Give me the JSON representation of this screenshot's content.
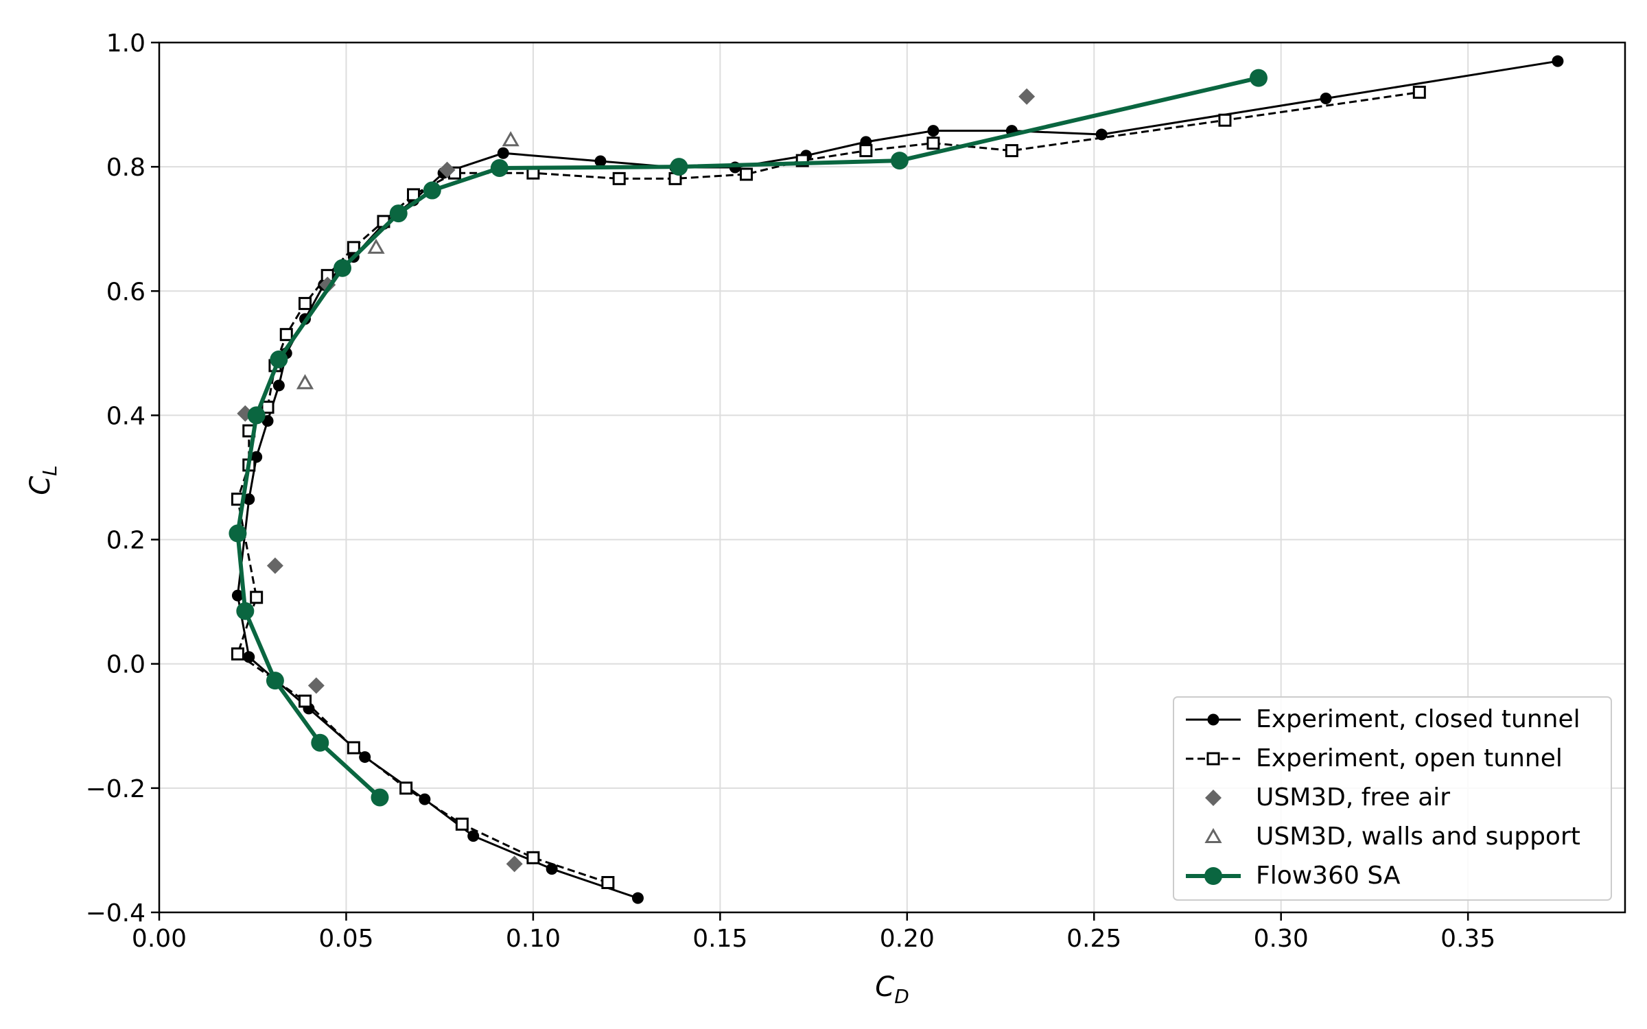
{
  "chart_data": {
    "type": "scatter",
    "title": "",
    "xlabel": {
      "main": "C",
      "sub": "D"
    },
    "ylabel": {
      "main": "C",
      "sub": "L"
    },
    "xlim": [
      0.0,
      0.392
    ],
    "ylim": [
      -0.4,
      1.0
    ],
    "xticks": [
      0.0,
      0.05,
      0.1,
      0.15,
      0.2,
      0.25,
      0.3,
      0.35
    ],
    "xtick_labels": [
      "0.00",
      "0.05",
      "0.10",
      "0.15",
      "0.20",
      "0.25",
      "0.30",
      "0.35"
    ],
    "yticks": [
      -0.4,
      -0.2,
      0.0,
      0.2,
      0.4,
      0.6,
      0.8,
      1.0
    ],
    "ytick_labels": [
      "−0.4",
      "−0.2",
      "0.0",
      "0.2",
      "0.4",
      "0.6",
      "0.8",
      "1.0"
    ],
    "grid": true,
    "legend_position": "bottom-right",
    "series": [
      {
        "name": "Experiment, closed tunnel",
        "style": "line-dot",
        "color": "#000000",
        "points": [
          [
            0.128,
            -0.377
          ],
          [
            0.105,
            -0.33
          ],
          [
            0.084,
            -0.277
          ],
          [
            0.071,
            -0.218
          ],
          [
            0.055,
            -0.15
          ],
          [
            0.04,
            -0.072
          ],
          [
            0.024,
            0.011
          ],
          [
            0.021,
            0.11
          ],
          [
            0.024,
            0.265
          ],
          [
            0.026,
            0.333
          ],
          [
            0.029,
            0.391
          ],
          [
            0.032,
            0.448
          ],
          [
            0.034,
            0.5
          ],
          [
            0.039,
            0.555
          ],
          [
            0.044,
            0.61
          ],
          [
            0.052,
            0.655
          ],
          [
            0.06,
            0.708
          ],
          [
            0.068,
            0.746
          ],
          [
            0.076,
            0.79
          ],
          [
            0.092,
            0.822
          ],
          [
            0.118,
            0.809
          ],
          [
            0.138,
            0.799
          ],
          [
            0.154,
            0.799
          ],
          [
            0.173,
            0.818
          ],
          [
            0.189,
            0.84
          ],
          [
            0.207,
            0.858
          ],
          [
            0.228,
            0.858
          ],
          [
            0.252,
            0.852
          ],
          [
            0.312,
            0.91
          ],
          [
            0.374,
            0.97
          ]
        ]
      },
      {
        "name": "Experiment, open tunnel",
        "style": "dashed-square",
        "color": "#000000",
        "points": [
          [
            0.12,
            -0.352
          ],
          [
            0.1,
            -0.312
          ],
          [
            0.081,
            -0.258
          ],
          [
            0.066,
            -0.2
          ],
          [
            0.052,
            -0.135
          ],
          [
            0.039,
            -0.06
          ],
          [
            0.021,
            0.016
          ],
          [
            0.026,
            0.107
          ],
          [
            0.021,
            0.265
          ],
          [
            0.024,
            0.32
          ],
          [
            0.024,
            0.375
          ],
          [
            0.029,
            0.413
          ],
          [
            0.031,
            0.48
          ],
          [
            0.034,
            0.53
          ],
          [
            0.039,
            0.58
          ],
          [
            0.045,
            0.625
          ],
          [
            0.052,
            0.67
          ],
          [
            0.06,
            0.712
          ],
          [
            0.068,
            0.755
          ],
          [
            0.079,
            0.79
          ],
          [
            0.1,
            0.79
          ],
          [
            0.123,
            0.781
          ],
          [
            0.138,
            0.781
          ],
          [
            0.157,
            0.788
          ],
          [
            0.172,
            0.81
          ],
          [
            0.189,
            0.826
          ],
          [
            0.207,
            0.838
          ],
          [
            0.228,
            0.826
          ],
          [
            0.285,
            0.875
          ],
          [
            0.337,
            0.92
          ]
        ]
      },
      {
        "name": "USM3D, free air",
        "style": "diamond",
        "color": "#666666",
        "points": [
          [
            0.095,
            -0.322
          ],
          [
            0.042,
            -0.035
          ],
          [
            0.031,
            0.158
          ],
          [
            0.023,
            0.403
          ],
          [
            0.045,
            0.61
          ],
          [
            0.077,
            0.795
          ],
          [
            0.232,
            0.913
          ]
        ]
      },
      {
        "name": "USM3D, walls and support",
        "style": "triangle",
        "color": "#666666",
        "points": [
          [
            0.039,
            0.452
          ],
          [
            0.058,
            0.67
          ],
          [
            0.094,
            0.843
          ]
        ]
      },
      {
        "name": "Flow360 SA",
        "style": "thick-line-dot",
        "color": "#0a6640",
        "points": [
          [
            0.059,
            -0.215
          ],
          [
            0.043,
            -0.127
          ],
          [
            0.031,
            -0.027
          ],
          [
            0.023,
            0.085
          ],
          [
            0.021,
            0.21
          ],
          [
            0.026,
            0.4
          ],
          [
            0.032,
            0.49
          ],
          [
            0.049,
            0.637
          ],
          [
            0.064,
            0.725
          ],
          [
            0.073,
            0.762
          ],
          [
            0.091,
            0.798
          ],
          [
            0.139,
            0.8
          ],
          [
            0.198,
            0.81
          ],
          [
            0.294,
            0.943
          ]
        ]
      }
    ]
  }
}
